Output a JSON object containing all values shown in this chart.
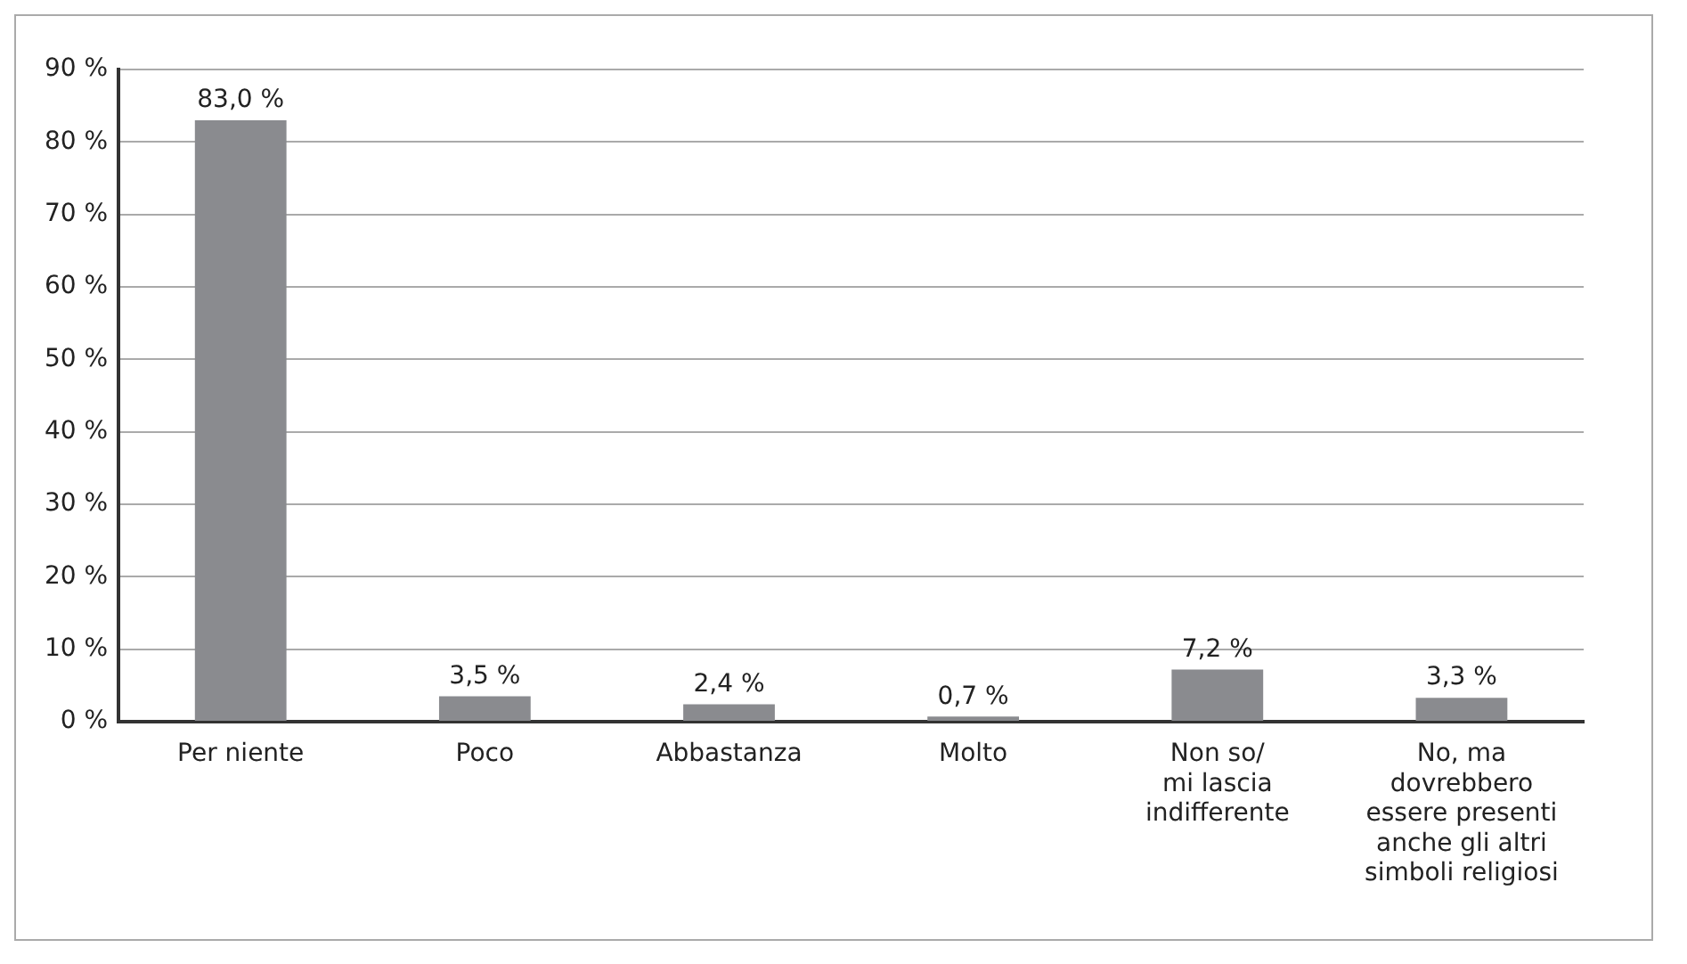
{
  "chart_data": {
    "type": "bar",
    "categories": [
      "Per niente",
      "Poco",
      "Abbastanza",
      "Molto",
      "Non so/\nmi lascia\nindifferente",
      "No, ma\ndovrebbero\nessere presenti\nanche gli altri\nsimboli religiosi"
    ],
    "values": [
      83.0,
      3.5,
      2.4,
      0.7,
      7.2,
      3.3
    ],
    "value_labels": [
      "83,0 %",
      "3,5 %",
      "2,4 %",
      "0,7 %",
      "7,2 %",
      "3,3 %"
    ],
    "color": "#8a8b8f",
    "ylim": [
      0,
      90
    ],
    "yticks": [
      {
        "value": 0,
        "label": "0 %"
      },
      {
        "value": 10,
        "label": "10 %"
      },
      {
        "value": 20,
        "label": "20 %"
      },
      {
        "value": 30,
        "label": "30 %"
      },
      {
        "value": 40,
        "label": "40 %"
      },
      {
        "value": 50,
        "label": "50 %"
      },
      {
        "value": 60,
        "label": "60 %"
      },
      {
        "value": 70,
        "label": "70 %"
      },
      {
        "value": 80,
        "label": "80 %"
      },
      {
        "value": 90,
        "label": "90 %"
      }
    ],
    "grid": "y",
    "legend": false
  }
}
